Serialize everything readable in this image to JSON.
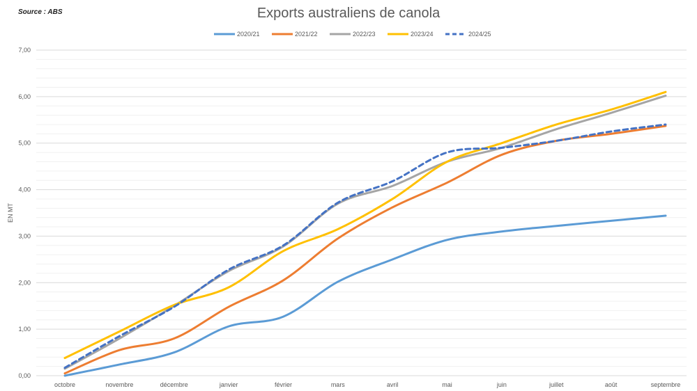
{
  "source": "Source : ABS",
  "chart_data": {
    "type": "line",
    "title": "Exports australiens de canola",
    "xlabel": "",
    "ylabel": "EN MT",
    "ylim": [
      0,
      7
    ],
    "yticks": [
      "0,00",
      "1,00",
      "2,00",
      "3,00",
      "4,00",
      "5,00",
      "6,00",
      "7,00"
    ],
    "minor_grid_step": 0.2,
    "grid": true,
    "legend_position": "top",
    "categories": [
      "octobre",
      "novembre",
      "décembre",
      "janvier",
      "février",
      "mars",
      "avril",
      "mai",
      "juin",
      "juillet",
      "août",
      "septembre"
    ],
    "series": [
      {
        "name": "2020/21",
        "color": "#5B9BD5",
        "dashed": false,
        "values": [
          0.0,
          0.24,
          0.5,
          1.06,
          1.27,
          2.02,
          2.5,
          2.92,
          3.1,
          3.22,
          3.33,
          3.44
        ]
      },
      {
        "name": "2021/22",
        "color": "#ED7D31",
        "dashed": false,
        "values": [
          0.05,
          0.55,
          0.8,
          1.48,
          2.05,
          2.95,
          3.62,
          4.15,
          4.75,
          5.05,
          5.2,
          5.37
        ]
      },
      {
        "name": "2022/23",
        "color": "#A5A5A5",
        "dashed": false,
        "values": [
          0.15,
          0.8,
          1.5,
          2.25,
          2.78,
          3.7,
          4.08,
          4.6,
          4.9,
          5.3,
          5.65,
          6.02
        ]
      },
      {
        "name": "2023/24",
        "color": "#FFC000",
        "dashed": false,
        "values": [
          0.38,
          0.95,
          1.52,
          1.9,
          2.68,
          3.15,
          3.8,
          4.6,
          5.0,
          5.4,
          5.72,
          6.1
        ]
      },
      {
        "name": "2024/25",
        "color": "#4472C4",
        "dashed": true,
        "values": [
          0.17,
          0.85,
          1.48,
          2.28,
          2.8,
          3.72,
          4.18,
          4.8,
          4.9,
          5.05,
          5.25,
          5.4
        ]
      }
    ]
  }
}
